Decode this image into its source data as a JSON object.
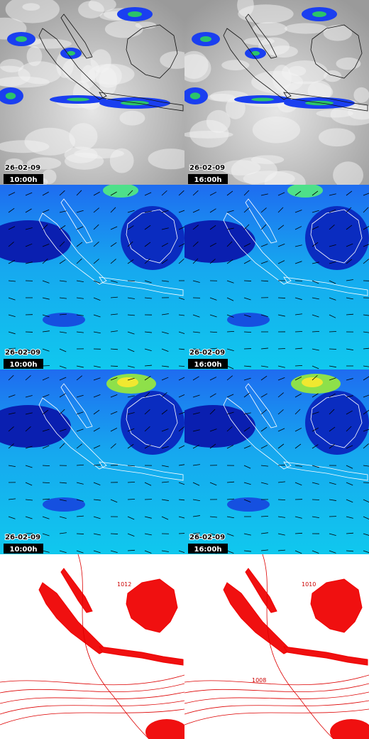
{
  "rows": [
    {
      "panels": [
        {
          "date": "26-02-09",
          "time": "10:00h"
        },
        {
          "date": "26-02-09",
          "time": "16:00h"
        }
      ]
    },
    {
      "panels": [
        {
          "date": "26-02-09",
          "time": "10:00h"
        },
        {
          "date": "26-02-09",
          "time": "16:00h"
        }
      ]
    },
    {
      "panels": [
        {
          "date": "26-02-09",
          "time": "10:00h"
        },
        {
          "date": "26-02-09",
          "time": "16:00h"
        }
      ]
    },
    {
      "panels": [
        {
          "contour_labels": [
            "1012"
          ]
        },
        {
          "contour_labels": [
            "1010",
            "1008"
          ]
        }
      ]
    }
  ]
}
